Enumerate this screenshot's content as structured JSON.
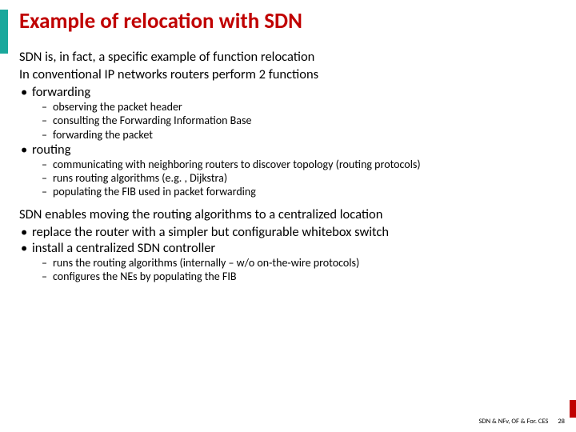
{
  "title": "Example of relocation with SDN",
  "p1": "SDN is, in fact, a specific example of function relocation",
  "p2": "In conventional IP networks routers perform 2 functions",
  "b1": "forwarding",
  "b1s1": "observing the packet header",
  "b1s2": "consulting the Forwarding Information Base",
  "b1s3": "forwarding the packet",
  "b2": "routing",
  "b2s1": "communicating with neighboring routers to discover topology (routing protocols)",
  "b2s2": "runs routing algorithms (e.g. , Dijkstra)",
  "b2s3": "populating the FIB used in packet forwarding",
  "p3": "SDN enables moving the routing algorithms to a centralized location",
  "b3": "replace the router with a simpler but configurable whitebox switch",
  "b4": "install a centralized SDN controller",
  "b4s1": "runs the routing algorithms (internally – w/o on-the-wire protocols)",
  "b4s2": "configures the NEs by populating the FIB",
  "footer_text": "SDN & NFv, OF & For. CES",
  "page_number": "28",
  "colors": {
    "title": "#c00000",
    "accent": "#1aa89c",
    "footer_accent": "#c00000",
    "background": "#ffffff",
    "text": "#000000"
  }
}
